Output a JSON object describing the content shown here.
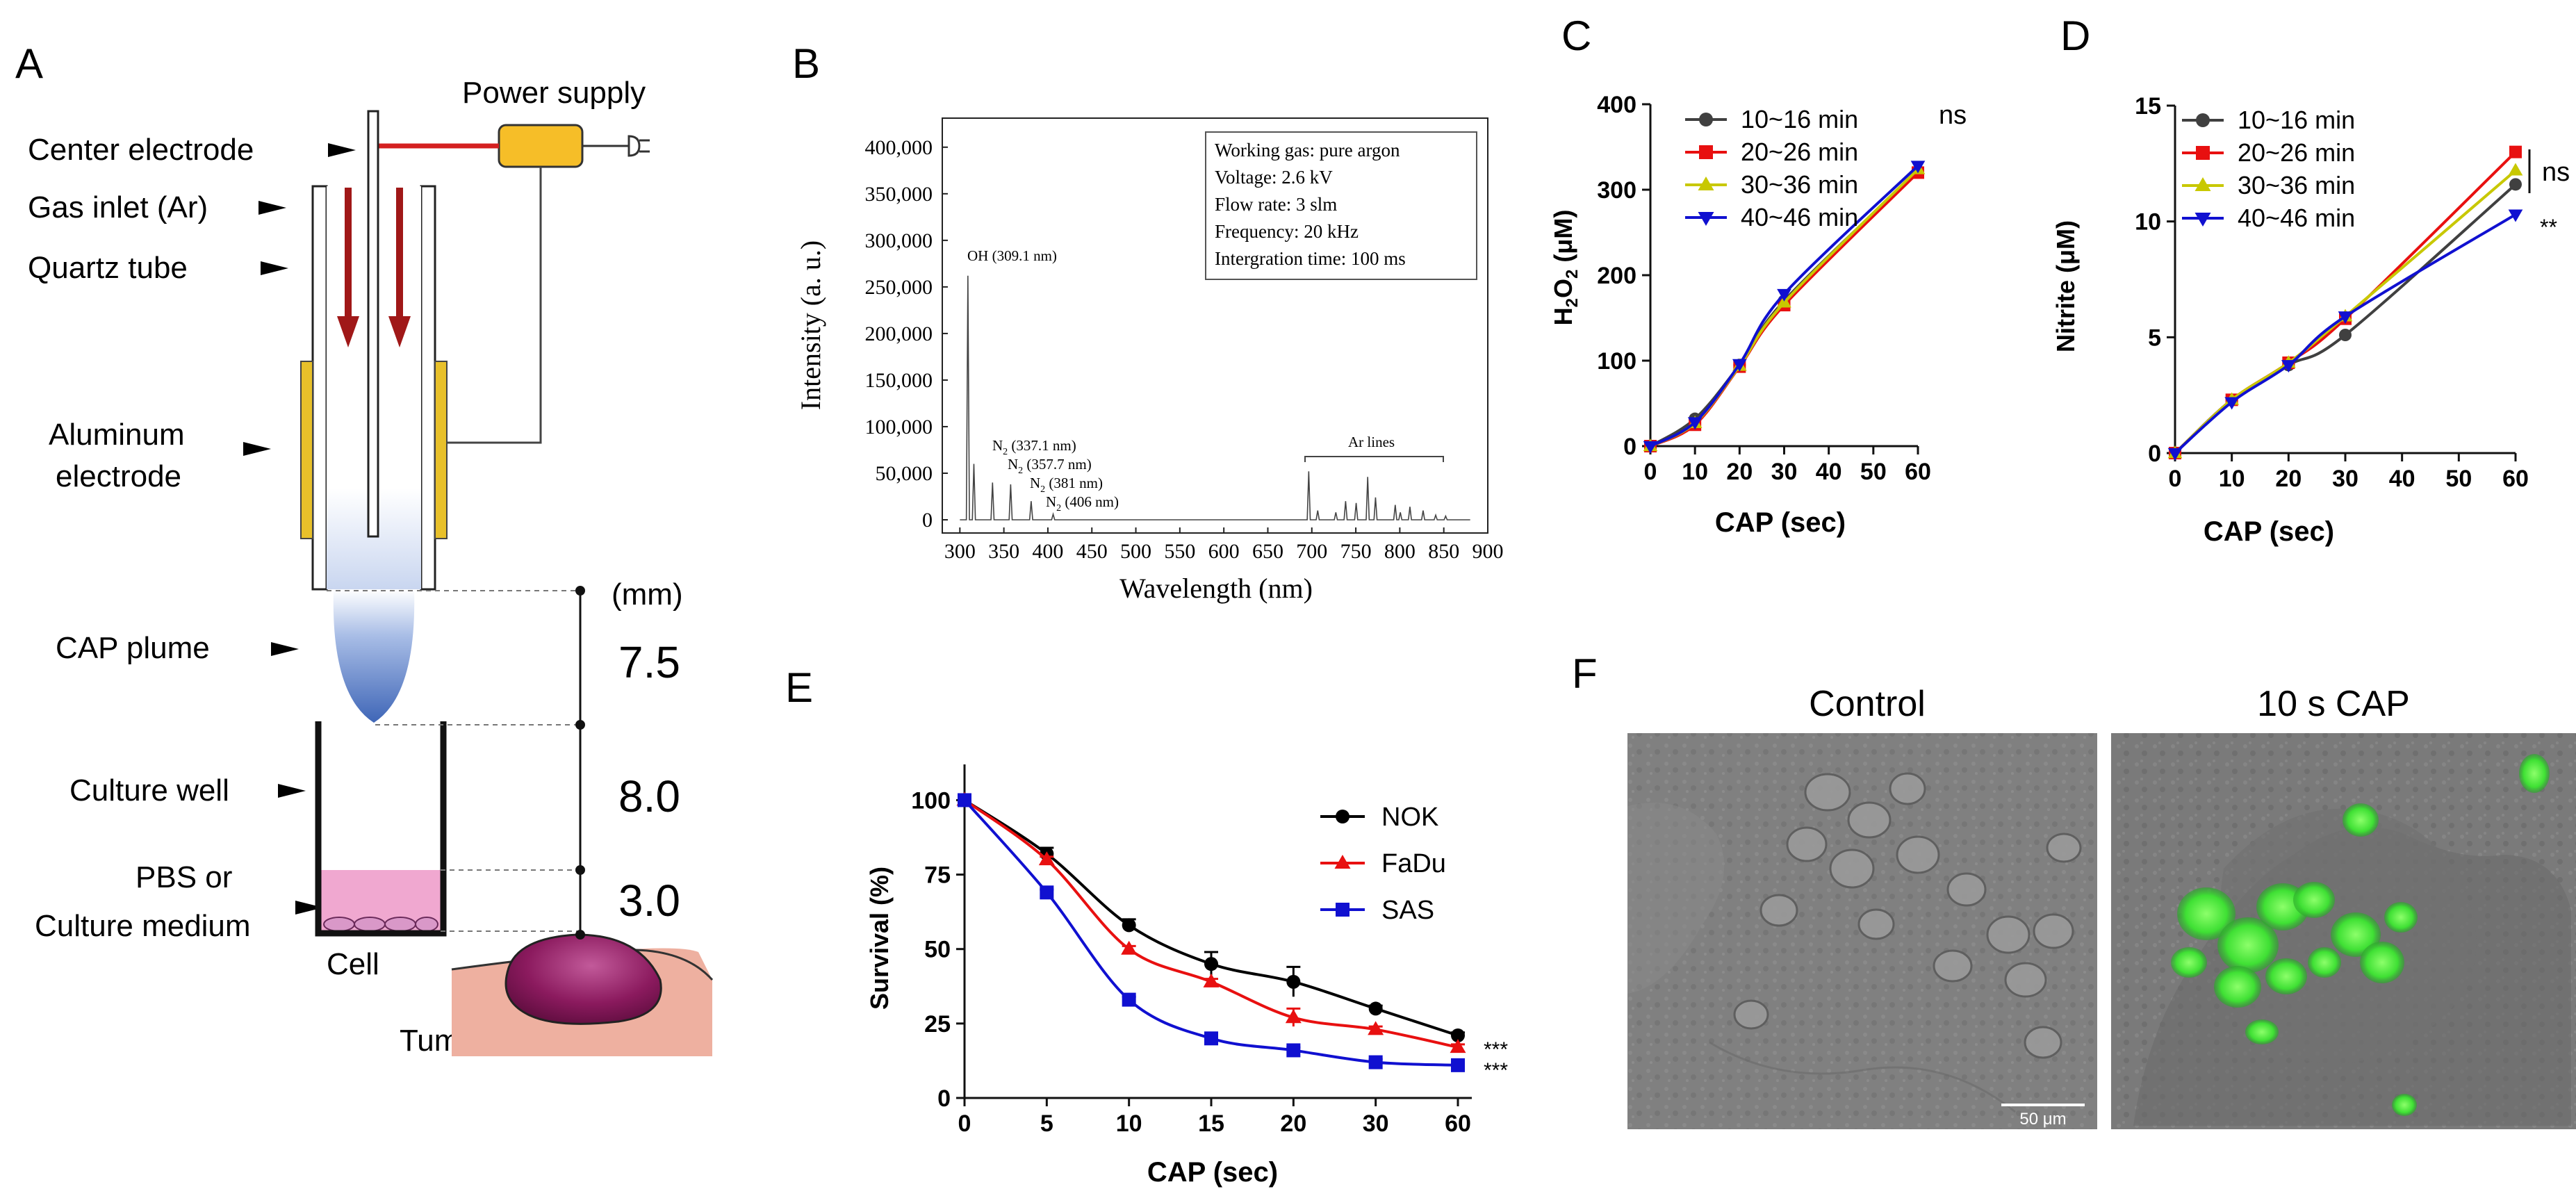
{
  "panels": {
    "A": {
      "letter": "A",
      "labels": {
        "power_supply": "Power supply",
        "center_electrode": "Center electrode",
        "gas_inlet": "Gas inlet (Ar)",
        "quartz_tube": "Quartz tube",
        "aluminum_line1": "Aluminum",
        "aluminum_line2": "electrode",
        "cap_plume": "CAP plume",
        "culture_well": "Culture well",
        "pbs_line1": "PBS or",
        "pbs_line2": "Culture medium",
        "cell": "Cell",
        "tumor": "Tumor"
      },
      "dimensions": {
        "unit": "(mm)",
        "values": [
          "7.5",
          "8.0",
          "3.0"
        ]
      },
      "colors": {
        "electrode": "#e8c02a",
        "wire": "#d42020",
        "arrow": "#a01818",
        "plume": "#3f66b7",
        "medium": "#f0a8d0",
        "tumor": "#8b1a5e",
        "tissue": "#eeb0a0"
      }
    },
    "B": {
      "letter": "B",
      "info_box": [
        "Working gas: pure argon",
        "Voltage: 2.6 kV",
        "Flow rate: 3 slm",
        "Frequency: 20 kHz",
        "Intergration time: 100 ms"
      ],
      "annotations": {
        "oh": "OH (309.1 nm)",
        "n2_prefix": "N",
        "n2_sub": "2",
        "n2_337": "(337.1 nm)",
        "n2_357": "(357.7 nm)",
        "n2_381": "(381 nm)",
        "n2_406": "(406 nm)",
        "ar_lines": "Ar lines"
      }
    },
    "C": {
      "letter": "C",
      "ylabel_main": "H",
      "ylabel_sub1": "2",
      "ylabel_mid": "O",
      "ylabel_sub2": "2",
      "ylabel_unit": " (μM)",
      "significance": "ns"
    },
    "D": {
      "letter": "D",
      "significance_ns": "ns",
      "significance_star": "**"
    },
    "E": {
      "letter": "E",
      "significance": [
        "***",
        "***"
      ]
    },
    "F": {
      "letter": "F",
      "titles": [
        "Control",
        "10 s CAP"
      ],
      "scale_bar": "50 μm"
    }
  },
  "chart_data": [
    {
      "id": "B",
      "type": "line",
      "title": "",
      "xlabel": "Wavelength (nm)",
      "ylabel": "Intensity (a. u.)",
      "xlim": [
        280,
        900
      ],
      "ylim": [
        0,
        420000
      ],
      "xticks": [
        "300",
        "350",
        "400",
        "450",
        "500",
        "550",
        "600",
        "650",
        "700",
        "750",
        "800",
        "850",
        "900"
      ],
      "yticks": [
        "0",
        "50,000",
        "100,000",
        "150,000",
        "200,000",
        "250,000",
        "300,000",
        "350,000",
        "400,000"
      ],
      "peaks": [
        {
          "x": 309.1,
          "y": 262000
        },
        {
          "x": 315.9,
          "y": 60000
        },
        {
          "x": 337.1,
          "y": 40000
        },
        {
          "x": 357.7,
          "y": 38000
        },
        {
          "x": 381.0,
          "y": 20000
        },
        {
          "x": 406.0,
          "y": 6000
        },
        {
          "x": 696.5,
          "y": 52000
        },
        {
          "x": 706.7,
          "y": 10000
        },
        {
          "x": 727.3,
          "y": 8000
        },
        {
          "x": 738.4,
          "y": 20000
        },
        {
          "x": 750.4,
          "y": 18000
        },
        {
          "x": 763.5,
          "y": 46000
        },
        {
          "x": 772.4,
          "y": 24000
        },
        {
          "x": 794.8,
          "y": 16000
        },
        {
          "x": 800.6,
          "y": 8000
        },
        {
          "x": 811.5,
          "y": 14000
        },
        {
          "x": 826.5,
          "y": 10000
        },
        {
          "x": 840.8,
          "y": 5000
        },
        {
          "x": 852.1,
          "y": 4000
        }
      ]
    },
    {
      "id": "C",
      "type": "line",
      "xlabel": "CAP (sec)",
      "ylabel": "H2O2 (μM)",
      "xlim": [
        0,
        60
      ],
      "ylim": [
        0,
        400
      ],
      "xticks": [
        "0",
        "10",
        "20",
        "30",
        "40",
        "50",
        "60"
      ],
      "yticks": [
        "0",
        "100",
        "200",
        "300",
        "400"
      ],
      "x": [
        0,
        10,
        20,
        30,
        60
      ],
      "series": [
        {
          "name": "10~16 min",
          "color": "#404040",
          "marker": "circle",
          "values": [
            0,
            32,
            95,
            170,
            322
          ]
        },
        {
          "name": "20~26 min",
          "color": "#e81010",
          "marker": "square",
          "values": [
            0,
            25,
            93,
            165,
            320
          ]
        },
        {
          "name": "30~36 min",
          "color": "#c8c800",
          "marker": "triangle-up",
          "values": [
            0,
            27,
            94,
            168,
            324
          ]
        },
        {
          "name": "40~46 min",
          "color": "#1010d0",
          "marker": "triangle-down",
          "values": [
            0,
            28,
            96,
            178,
            328
          ]
        }
      ]
    },
    {
      "id": "D",
      "type": "line",
      "xlabel": "CAP (sec)",
      "ylabel": "Nitrite (μM)",
      "xlim": [
        0,
        60
      ],
      "ylim": [
        0,
        15
      ],
      "xticks": [
        "0",
        "10",
        "20",
        "30",
        "40",
        "50",
        "60"
      ],
      "yticks": [
        "0",
        "5",
        "10",
        "15"
      ],
      "x": [
        0,
        10,
        20,
        30,
        60
      ],
      "series": [
        {
          "name": "10~16 min",
          "color": "#404040",
          "marker": "circle",
          "values": [
            0,
            2.3,
            3.8,
            5.1,
            11.6
          ]
        },
        {
          "name": "20~26 min",
          "color": "#e81010",
          "marker": "square",
          "values": [
            0,
            2.3,
            3.9,
            5.8,
            13.0
          ]
        },
        {
          "name": "30~36 min",
          "color": "#c8c800",
          "marker": "triangle-up",
          "values": [
            0,
            2.3,
            3.9,
            5.9,
            12.2
          ]
        },
        {
          "name": "40~46 min",
          "color": "#1010d0",
          "marker": "triangle-down",
          "values": [
            0,
            2.2,
            3.8,
            5.9,
            10.3
          ]
        }
      ]
    },
    {
      "id": "E",
      "type": "line",
      "xlabel": "CAP (sec)",
      "ylabel": "Survival (%)",
      "xlim": [
        0,
        60
      ],
      "ylim": [
        0,
        112
      ],
      "xticks": [
        "0",
        "5",
        "10",
        "15",
        "20",
        "30",
        "60"
      ],
      "yticks": [
        "0",
        "25",
        "50",
        "75",
        "100"
      ],
      "x_categories": [
        0,
        5,
        10,
        15,
        20,
        30,
        60
      ],
      "series": [
        {
          "name": "NOK",
          "color": "#000000",
          "marker": "circle",
          "values": [
            100,
            82,
            58,
            45,
            39,
            30,
            21
          ],
          "errors": [
            0,
            2,
            2,
            4,
            5,
            1,
            1
          ]
        },
        {
          "name": "FaDu",
          "color": "#e81010",
          "marker": "triangle-up",
          "values": [
            100,
            80,
            50,
            39,
            27,
            23,
            17
          ],
          "errors": [
            0,
            1,
            1,
            1,
            3,
            1,
            1
          ]
        },
        {
          "name": "SAS",
          "color": "#1010d0",
          "marker": "square",
          "values": [
            100,
            69,
            33,
            20,
            16,
            12,
            11
          ],
          "errors": [
            0,
            1,
            1,
            1,
            1,
            1,
            1
          ]
        }
      ]
    }
  ]
}
